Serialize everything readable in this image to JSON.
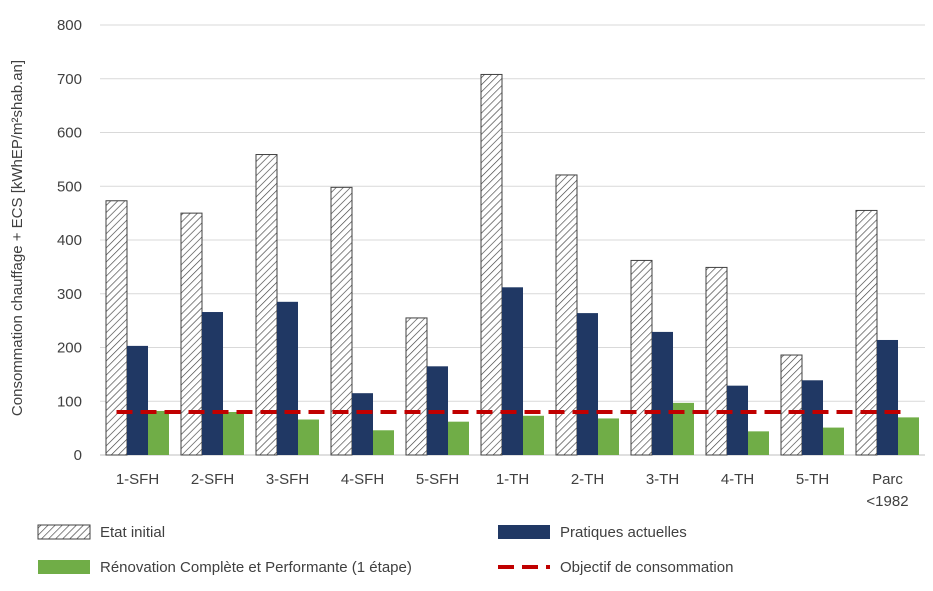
{
  "chart_data": {
    "type": "bar",
    "ylabel": "Consommation chauffage + ECS [kWhEP/m²shab.an]",
    "ylim": [
      0,
      800
    ],
    "yticks": [
      0,
      100,
      200,
      300,
      400,
      500,
      600,
      700,
      800
    ],
    "grid": true,
    "legend_position": "bottom",
    "categories": [
      [
        "1-SFH"
      ],
      [
        "2-SFH"
      ],
      [
        "3-SFH"
      ],
      [
        "4-SFH"
      ],
      [
        "5-SFH"
      ],
      [
        "1-TH"
      ],
      [
        "2-TH"
      ],
      [
        "3-TH"
      ],
      [
        "4-TH"
      ],
      [
        "5-TH"
      ],
      [
        "Parc",
        "<1982"
      ]
    ],
    "series": [
      {
        "name": "Etat initial",
        "style": "hatched",
        "color": "#ffffff",
        "stroke": "#404040",
        "values": [
          473,
          450,
          559,
          498,
          255,
          708,
          521,
          362,
          349,
          186,
          455
        ]
      },
      {
        "name": "Pratiques actuelles",
        "style": "solid",
        "color": "#203864",
        "values": [
          203,
          266,
          285,
          115,
          165,
          312,
          264,
          229,
          129,
          139,
          214
        ]
      },
      {
        "name": "Rénovation Complète et Performante (1 étape)",
        "style": "solid",
        "color": "#70ad47",
        "values": [
          82,
          80,
          66,
          46,
          62,
          73,
          68,
          97,
          44,
          51,
          70
        ]
      }
    ],
    "target_line": {
      "name": "Objectif de consommation",
      "value": 80,
      "color": "#c00000",
      "style": "dashed"
    }
  }
}
